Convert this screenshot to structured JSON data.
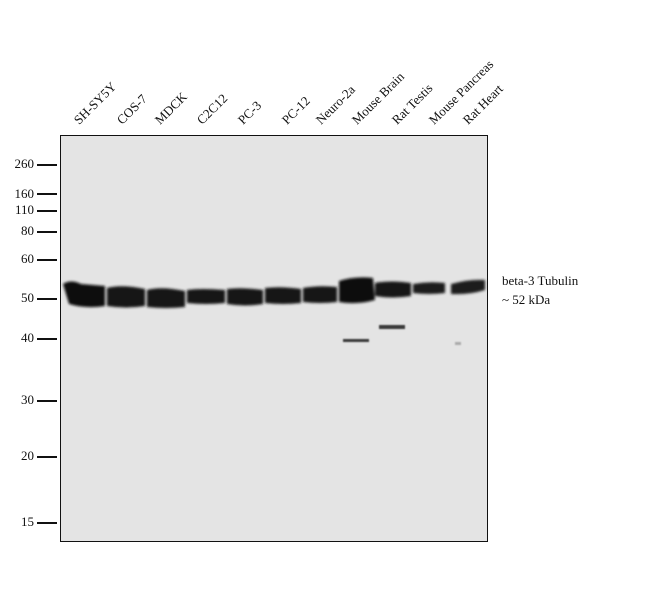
{
  "lanes": [
    "SH-SY5Y",
    "COS-7",
    "MDCK",
    "C2C12",
    "PC-3",
    "PC-12",
    "Neuro-2a",
    "Mouse Brain",
    "Rat Testis",
    "Mouse Pancreas",
    "Rat Heart"
  ],
  "markers": [
    "260",
    "160",
    "110",
    "80",
    "60",
    "50",
    "40",
    "30",
    "20",
    "15"
  ],
  "annotation": {
    "protein": "beta-3 Tubulin",
    "size": "~ 52 kDa"
  },
  "colors": {
    "membrane": "#e4e4e4",
    "band": "#111111"
  }
}
